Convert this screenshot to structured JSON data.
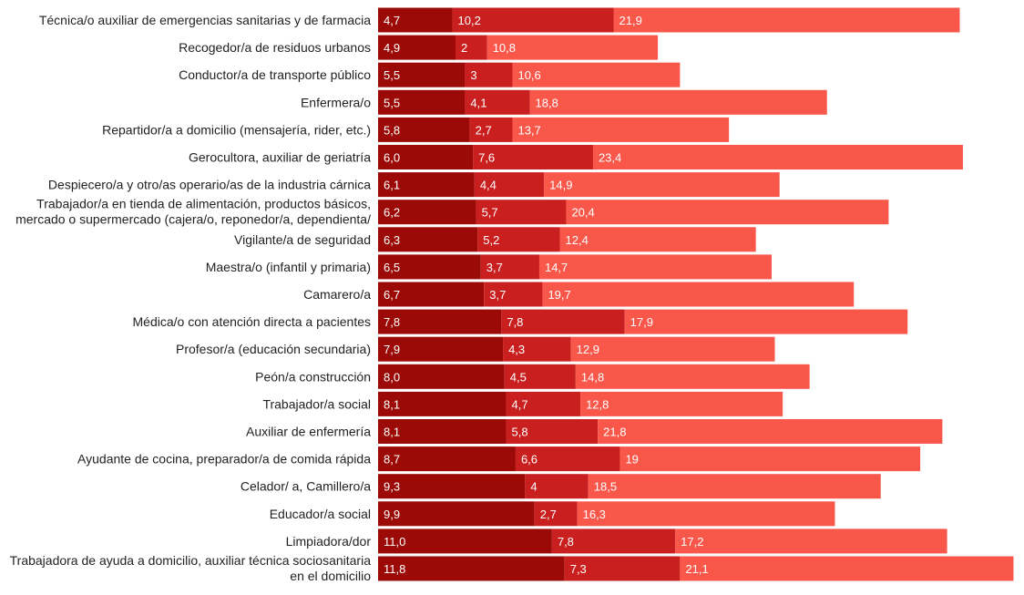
{
  "chart_data": {
    "type": "bar",
    "orientation": "horizontal",
    "stacked": true,
    "categories": [
      [
        "Técnica/o auxiliar de emergencias sanitarias y de farmacia"
      ],
      [
        "Recogedor/a de residuos urbanos"
      ],
      [
        "Conductor/a de transporte público"
      ],
      [
        "Enfermera/o"
      ],
      [
        "Repartidor/a a domicilio (mensajería, rider, etc.)"
      ],
      [
        "Gerocultora, auxiliar de geriatría"
      ],
      [
        "Despiecero/a y otro/as operario/as de la industria cárnica"
      ],
      [
        "Trabajador/a en tienda de alimentación, productos básicos,",
        "mercado o supermercado (cajera/o, reponedor/a, dependienta/"
      ],
      [
        "Vigilante/a de seguridad"
      ],
      [
        "Maestra/o (infantil y primaria)"
      ],
      [
        "Camarero/a"
      ],
      [
        "Médica/o con atención directa a pacientes"
      ],
      [
        "Profesor/a (educación secundaria)"
      ],
      [
        "Peón/a construcción"
      ],
      [
        "Trabajador/a social"
      ],
      [
        "Auxiliar de enfermería"
      ],
      [
        "Ayudante de cocina, preparador/a de comida rápida"
      ],
      [
        "Celador/ a, Camillero/a"
      ],
      [
        "Educador/a social"
      ],
      [
        "Limpiadora/dor"
      ],
      [
        "Trabajadora de ayuda a domicilio, auxiliar técnica sociosanitaria",
        "en el domicilio"
      ]
    ],
    "series": [
      {
        "values": [
          4.7,
          4.9,
          5.5,
          5.5,
          5.8,
          6.0,
          6.1,
          6.2,
          6.3,
          6.5,
          6.7,
          7.8,
          7.9,
          8.0,
          8.1,
          8.1,
          8.7,
          9.3,
          9.9,
          11.0,
          11.8
        ],
        "labels": [
          "4,7",
          "4,9",
          "5,5",
          "5,5",
          "5,8",
          "6,0",
          "6,1",
          "6,2",
          "6,3",
          "6,5",
          "6,7",
          "7,8",
          "7,9",
          "8,0",
          "8,1",
          "8,1",
          "8,7",
          "9,3",
          "9,9",
          "11,0",
          "11,8"
        ],
        "color": "#9b0a06"
      },
      {
        "values": [
          10.2,
          2,
          3,
          4.1,
          2.7,
          7.6,
          4.4,
          5.7,
          5.2,
          3.7,
          3.7,
          7.8,
          4.3,
          4.5,
          4.7,
          5.8,
          6.6,
          4,
          2.7,
          7.8,
          7.3
        ],
        "labels": [
          "10,2",
          "2",
          "3",
          "4,1",
          "2,7",
          "7,6",
          "4,4",
          "5,7",
          "5,2",
          "3,7",
          "3,7",
          "7,8",
          "4,3",
          "4,5",
          "4,7",
          "5,8",
          "6,6",
          "4",
          "2,7",
          "7,8",
          "7,3"
        ],
        "color": "#c91f1f"
      },
      {
        "values": [
          21.9,
          10.8,
          10.6,
          18.8,
          13.7,
          23.4,
          14.9,
          20.4,
          12.4,
          14.7,
          19.7,
          17.9,
          12.9,
          14.8,
          12.8,
          21.8,
          19,
          18.5,
          16.3,
          17.2,
          21.1
        ],
        "labels": [
          "21,9",
          "10,8",
          "10,6",
          "18,8",
          "13,7",
          "23,4",
          "14,9",
          "20,4",
          "12,4",
          "14,7",
          "19,7",
          "17,9",
          "12,9",
          "14,8",
          "12,8",
          "21,8",
          "19",
          "18,5",
          "16,3",
          "17,2",
          "21,1"
        ],
        "color": "#f8574a"
      }
    ],
    "grid": false,
    "legend": "none"
  }
}
